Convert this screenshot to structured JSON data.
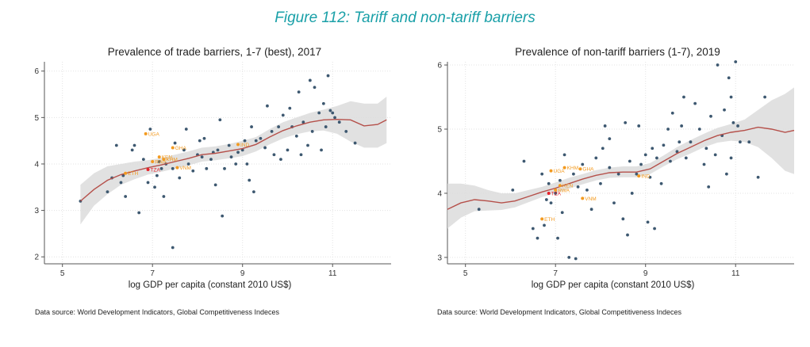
{
  "figure_title": "Figure 112: Tariff and non-tariff barriers",
  "colors": {
    "dot": "#3d5870",
    "fit_line": "#b5504a",
    "ci_band": "#dcdcdc",
    "label_orange": "#f39a1f",
    "label_red": "#e8202a",
    "title_teal": "#1aa0a8"
  },
  "chart_data": [
    {
      "type": "scatter",
      "title": "Prevalence of trade barriers, 1-7 (best), 2017",
      "xlabel": "log GDP per capita (constant 2010 US$)",
      "ylabel": "",
      "xlim": [
        4.6,
        12.3
      ],
      "ylim": [
        1.85,
        6.2
      ],
      "xticks": [
        5,
        7,
        9,
        11
      ],
      "yticks": [
        2,
        3,
        4,
        5,
        6
      ],
      "grid": true,
      "source": "Data source: World Development Indicators, Global Competitiveness Indeces",
      "points": [
        [
          5.4,
          3.2
        ],
        [
          6.0,
          3.4
        ],
        [
          6.1,
          3.7
        ],
        [
          6.2,
          4.4
        ],
        [
          6.3,
          3.6
        ],
        [
          6.35,
          3.75
        ],
        [
          6.4,
          3.3
        ],
        [
          6.55,
          4.3
        ],
        [
          6.6,
          4.4
        ],
        [
          6.7,
          2.95
        ],
        [
          6.8,
          4.1
        ],
        [
          6.9,
          3.6
        ],
        [
          6.95,
          4.75
        ],
        [
          7.05,
          3.5
        ],
        [
          7.1,
          3.75
        ],
        [
          7.15,
          4.05
        ],
        [
          7.2,
          3.9
        ],
        [
          7.25,
          3.3
        ],
        [
          7.3,
          4.0
        ],
        [
          7.45,
          3.9
        ],
        [
          7.5,
          4.45
        ],
        [
          7.6,
          3.7
        ],
        [
          7.7,
          4.3
        ],
        [
          7.75,
          4.75
        ],
        [
          7.8,
          4.0
        ],
        [
          7.9,
          3.85
        ],
        [
          8.0,
          4.2
        ],
        [
          8.05,
          4.5
        ],
        [
          8.1,
          4.15
        ],
        [
          8.2,
          3.9
        ],
        [
          8.3,
          4.1
        ],
        [
          8.35,
          4.25
        ],
        [
          8.4,
          3.55
        ],
        [
          8.45,
          4.3
        ],
        [
          8.5,
          4.95
        ],
        [
          8.55,
          2.88
        ],
        [
          8.6,
          3.9
        ],
        [
          8.7,
          4.4
        ],
        [
          8.75,
          4.15
        ],
        [
          8.85,
          4.0
        ],
        [
          8.9,
          4.25
        ],
        [
          9.0,
          4.3
        ],
        [
          9.05,
          4.5
        ],
        [
          9.1,
          4.0
        ],
        [
          9.15,
          3.65
        ],
        [
          9.2,
          4.8
        ],
        [
          9.25,
          3.4
        ],
        [
          9.3,
          4.5
        ],
        [
          9.4,
          4.55
        ],
        [
          9.5,
          4.35
        ],
        [
          9.55,
          5.25
        ],
        [
          9.65,
          4.7
        ],
        [
          9.7,
          4.2
        ],
        [
          9.8,
          4.8
        ],
        [
          9.85,
          4.1
        ],
        [
          9.9,
          5.05
        ],
        [
          10.0,
          4.3
        ],
        [
          10.05,
          5.2
        ],
        [
          10.1,
          4.8
        ],
        [
          10.2,
          4.6
        ],
        [
          10.25,
          5.55
        ],
        [
          10.3,
          4.2
        ],
        [
          10.35,
          4.9
        ],
        [
          10.45,
          4.4
        ],
        [
          10.5,
          5.8
        ],
        [
          10.55,
          4.7
        ],
        [
          10.6,
          5.65
        ],
        [
          10.7,
          5.1
        ],
        [
          10.75,
          4.3
        ],
        [
          10.8,
          5.3
        ],
        [
          10.85,
          4.8
        ],
        [
          10.9,
          5.9
        ],
        [
          10.95,
          5.15
        ],
        [
          11.0,
          5.1
        ],
        [
          11.05,
          5.0
        ],
        [
          11.15,
          4.9
        ],
        [
          11.3,
          4.7
        ],
        [
          11.5,
          4.45
        ],
        [
          7.45,
          2.2
        ],
        [
          8.15,
          4.55
        ]
      ],
      "fit": {
        "x": [
          5.4,
          5.7,
          6.0,
          6.3,
          6.6,
          6.9,
          7.2,
          7.5,
          7.8,
          8.1,
          8.4,
          8.7,
          9.0,
          9.3,
          9.6,
          9.9,
          10.2,
          10.5,
          10.8,
          11.1,
          11.4,
          11.7,
          12.0,
          12.2
        ],
        "y": [
          3.2,
          3.45,
          3.65,
          3.77,
          3.85,
          3.92,
          3.98,
          4.05,
          4.12,
          4.2,
          4.23,
          4.28,
          4.33,
          4.42,
          4.58,
          4.72,
          4.82,
          4.9,
          4.95,
          4.96,
          4.95,
          4.82,
          4.85,
          4.95
        ],
        "lower": [
          2.7,
          3.1,
          3.35,
          3.55,
          3.67,
          3.77,
          3.83,
          3.9,
          3.97,
          4.05,
          4.08,
          4.12,
          4.17,
          4.27,
          4.42,
          4.55,
          4.64,
          4.7,
          4.72,
          4.65,
          4.48,
          4.35,
          4.35,
          4.45
        ],
        "upper": [
          3.55,
          3.8,
          3.95,
          4.0,
          4.05,
          4.08,
          4.13,
          4.2,
          4.27,
          4.35,
          4.38,
          4.43,
          4.5,
          4.58,
          4.75,
          4.9,
          5.0,
          5.1,
          5.17,
          5.25,
          5.35,
          5.3,
          5.3,
          5.45
        ]
      },
      "labels": [
        {
          "text": "UGA",
          "x": 6.85,
          "y": 4.65,
          "color": "orange"
        },
        {
          "text": "GHA",
          "x": 7.45,
          "y": 4.35,
          "color": "orange"
        },
        {
          "text": "KEN",
          "x": 7.15,
          "y": 4.15,
          "color": "orange"
        },
        {
          "text": "RWA",
          "x": 7.0,
          "y": 4.05,
          "color": "orange"
        },
        {
          "text": "KHM",
          "x": 7.25,
          "y": 4.1,
          "color": "orange"
        },
        {
          "text": "VNM",
          "x": 7.55,
          "y": 3.92,
          "color": "orange"
        },
        {
          "text": "IND",
          "x": 8.9,
          "y": 4.42,
          "color": "orange"
        },
        {
          "text": "ETH",
          "x": 6.4,
          "y": 3.8,
          "color": "orange"
        },
        {
          "text": "TZA",
          "x": 6.9,
          "y": 3.88,
          "color": "red"
        }
      ]
    },
    {
      "type": "scatter",
      "title": "Prevalence of non-tariff barriers (1-7), 2019",
      "xlabel": "log GDP per capita (constant 2010 US$)",
      "ylabel": "",
      "xlim": [
        4.6,
        12.3
      ],
      "ylim": [
        2.9,
        6.05
      ],
      "xticks": [
        5,
        7,
        9,
        11
      ],
      "yticks": [
        3,
        4,
        5,
        6
      ],
      "grid": true,
      "source": "Data source: World Development Indicators, Global Competitiveness Indeces",
      "points": [
        [
          5.3,
          3.75
        ],
        [
          6.05,
          4.05
        ],
        [
          6.3,
          4.5
        ],
        [
          6.5,
          3.45
        ],
        [
          6.6,
          3.3
        ],
        [
          6.7,
          4.3
        ],
        [
          6.75,
          3.5
        ],
        [
          6.8,
          3.9
        ],
        [
          6.85,
          4.15
        ],
        [
          6.9,
          3.85
        ],
        [
          7.0,
          4.0
        ],
        [
          7.05,
          3.3
        ],
        [
          7.1,
          4.2
        ],
        [
          7.15,
          3.7
        ],
        [
          7.2,
          4.6
        ],
        [
          7.3,
          3.0
        ],
        [
          7.4,
          4.3
        ],
        [
          7.45,
          2.98
        ],
        [
          7.5,
          4.1
        ],
        [
          7.6,
          4.45
        ],
        [
          7.7,
          4.05
        ],
        [
          7.8,
          3.75
        ],
        [
          7.9,
          4.55
        ],
        [
          8.0,
          4.15
        ],
        [
          8.05,
          4.7
        ],
        [
          8.1,
          5.05
        ],
        [
          8.2,
          4.4
        ],
        [
          8.3,
          3.85
        ],
        [
          8.4,
          4.3
        ],
        [
          8.5,
          3.6
        ],
        [
          8.55,
          5.1
        ],
        [
          8.6,
          3.35
        ],
        [
          8.65,
          4.5
        ],
        [
          8.7,
          4.0
        ],
        [
          8.8,
          4.3
        ],
        [
          8.85,
          5.05
        ],
        [
          8.9,
          4.45
        ],
        [
          9.0,
          4.6
        ],
        [
          9.05,
          3.55
        ],
        [
          9.1,
          4.25
        ],
        [
          9.15,
          4.7
        ],
        [
          9.2,
          3.45
        ],
        [
          9.25,
          4.55
        ],
        [
          9.35,
          4.15
        ],
        [
          9.4,
          4.75
        ],
        [
          9.5,
          5.0
        ],
        [
          9.55,
          4.5
        ],
        [
          9.6,
          5.25
        ],
        [
          9.7,
          4.65
        ],
        [
          9.75,
          4.8
        ],
        [
          9.8,
          5.05
        ],
        [
          9.85,
          5.5
        ],
        [
          9.9,
          4.55
        ],
        [
          10.0,
          4.8
        ],
        [
          10.1,
          5.4
        ],
        [
          10.2,
          5.0
        ],
        [
          10.3,
          4.45
        ],
        [
          10.35,
          4.7
        ],
        [
          10.45,
          5.2
        ],
        [
          10.55,
          4.6
        ],
        [
          10.6,
          6.0
        ],
        [
          10.7,
          4.9
        ],
        [
          10.75,
          5.3
        ],
        [
          10.8,
          4.3
        ],
        [
          10.85,
          5.8
        ],
        [
          10.9,
          4.55
        ],
        [
          10.95,
          5.1
        ],
        [
          11.0,
          6.05
        ],
        [
          11.05,
          5.05
        ],
        [
          11.1,
          4.8
        ],
        [
          11.3,
          4.8
        ],
        [
          11.5,
          4.25
        ],
        [
          11.65,
          5.5
        ],
        [
          10.4,
          4.1
        ],
        [
          10.9,
          5.5
        ],
        [
          8.2,
          4.85
        ]
      ],
      "fit": {
        "x": [
          4.6,
          4.9,
          5.2,
          5.5,
          5.8,
          6.1,
          6.4,
          6.7,
          7.0,
          7.3,
          7.6,
          7.9,
          8.2,
          8.5,
          8.8,
          9.1,
          9.4,
          9.7,
          10.0,
          10.3,
          10.6,
          10.9,
          11.2,
          11.5,
          11.8,
          12.1,
          12.3
        ],
        "y": [
          3.75,
          3.85,
          3.9,
          3.88,
          3.85,
          3.88,
          3.95,
          4.02,
          4.08,
          4.15,
          4.22,
          4.28,
          4.32,
          4.33,
          4.33,
          4.38,
          4.5,
          4.62,
          4.72,
          4.82,
          4.9,
          4.95,
          4.98,
          5.03,
          5.0,
          4.95,
          4.98
        ],
        "lower": [
          3.45,
          3.62,
          3.72,
          3.73,
          3.74,
          3.78,
          3.86,
          3.94,
          4.0,
          4.07,
          4.14,
          4.2,
          4.24,
          4.25,
          4.25,
          4.3,
          4.42,
          4.53,
          4.62,
          4.72,
          4.79,
          4.82,
          4.8,
          4.72,
          4.55,
          4.35,
          4.3
        ],
        "upper": [
          4.15,
          4.15,
          4.12,
          4.05,
          4.0,
          4.0,
          4.05,
          4.1,
          4.17,
          4.24,
          4.3,
          4.36,
          4.4,
          4.42,
          4.42,
          4.47,
          4.59,
          4.72,
          4.83,
          4.93,
          5.02,
          5.08,
          5.15,
          5.3,
          5.45,
          5.55,
          5.65
        ]
      },
      "labels": [
        {
          "text": "UGA",
          "x": 6.9,
          "y": 4.35,
          "color": "orange"
        },
        {
          "text": "KHM",
          "x": 7.2,
          "y": 4.4,
          "color": "orange"
        },
        {
          "text": "GHA",
          "x": 7.55,
          "y": 4.38,
          "color": "orange"
        },
        {
          "text": "KEN",
          "x": 7.1,
          "y": 4.12,
          "color": "orange"
        },
        {
          "text": "RWA",
          "x": 7.0,
          "y": 4.05,
          "color": "orange"
        },
        {
          "text": "VNM",
          "x": 7.6,
          "y": 3.92,
          "color": "orange"
        },
        {
          "text": "IND",
          "x": 8.85,
          "y": 4.27,
          "color": "orange"
        },
        {
          "text": "ETH",
          "x": 6.7,
          "y": 3.6,
          "color": "orange"
        },
        {
          "text": "TZA",
          "x": 6.85,
          "y": 4.0,
          "color": "red"
        }
      ]
    }
  ]
}
